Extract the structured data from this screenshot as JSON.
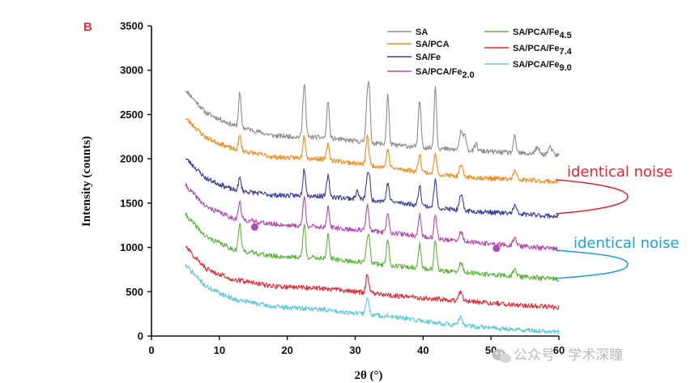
{
  "chart_data": {
    "type": "line",
    "panel_label": "B",
    "xlabel": "2θ (°)",
    "ylabel": "Intensity (counts)",
    "xlim": [
      0,
      60
    ],
    "ylim": [
      0,
      3500
    ],
    "x_ticks": [
      0,
      10,
      20,
      30,
      40,
      50,
      60
    ],
    "y_ticks": [
      0,
      500,
      1000,
      1500,
      2000,
      2500,
      3000,
      3500
    ],
    "grid": false,
    "legend_position": "top-right",
    "x_range_data": [
      5,
      60
    ],
    "series": [
      {
        "name": "SA",
        "name_base": "SA",
        "name_sub": "",
        "color": "#8c8c8c",
        "baseline": [
          [
            5,
            2780
          ],
          [
            8,
            2520
          ],
          [
            12,
            2380
          ],
          [
            18,
            2260
          ],
          [
            25,
            2240
          ],
          [
            35,
            2160
          ],
          [
            45,
            2100
          ],
          [
            60,
            2040
          ]
        ],
        "peaks": [
          [
            13.0,
            380,
            0.18
          ],
          [
            22.5,
            620,
            0.2
          ],
          [
            26.0,
            430,
            0.18
          ],
          [
            31.8,
            560,
            0.2
          ],
          [
            32.1,
            420,
            0.15
          ],
          [
            34.8,
            560,
            0.18
          ],
          [
            39.5,
            520,
            0.2
          ],
          [
            41.8,
            700,
            0.18
          ],
          [
            45.6,
            210,
            0.25
          ],
          [
            46.2,
            160,
            0.2
          ],
          [
            47.8,
            80,
            0.2
          ],
          [
            53.5,
            180,
            0.2
          ],
          [
            56.8,
            70,
            0.3
          ],
          [
            58.7,
            80,
            0.3
          ]
        ]
      },
      {
        "name": "SA/PCA",
        "name_base": "SA/PCA",
        "name_sub": "",
        "color": "#f08c1e",
        "baseline": [
          [
            5,
            2460
          ],
          [
            8,
            2240
          ],
          [
            12,
            2110
          ],
          [
            18,
            2020
          ],
          [
            25,
            2000
          ],
          [
            35,
            1900
          ],
          [
            45,
            1800
          ],
          [
            60,
            1740
          ]
        ],
        "peaks": [
          [
            13.0,
            160,
            0.2
          ],
          [
            22.5,
            260,
            0.2
          ],
          [
            26.0,
            170,
            0.2
          ],
          [
            31.8,
            330,
            0.2
          ],
          [
            34.8,
            200,
            0.2
          ],
          [
            39.5,
            200,
            0.2
          ],
          [
            41.8,
            220,
            0.2
          ],
          [
            45.6,
            120,
            0.25
          ],
          [
            53.5,
            90,
            0.25
          ]
        ]
      },
      {
        "name": "SA/Fe",
        "name_base": "SA/Fe",
        "name_sub": "",
        "color": "#3a3e9c",
        "baseline": [
          [
            5,
            2010
          ],
          [
            8,
            1780
          ],
          [
            12,
            1650
          ],
          [
            18,
            1590
          ],
          [
            25,
            1580
          ],
          [
            35,
            1520
          ],
          [
            45,
            1420
          ],
          [
            60,
            1350
          ]
        ],
        "peaks": [
          [
            13.0,
            140,
            0.2
          ],
          [
            22.5,
            310,
            0.2
          ],
          [
            26.0,
            230,
            0.2
          ],
          [
            30.3,
            90,
            0.2
          ],
          [
            31.8,
            260,
            0.2
          ],
          [
            32.1,
            200,
            0.15
          ],
          [
            34.8,
            200,
            0.2
          ],
          [
            39.5,
            230,
            0.2
          ],
          [
            41.8,
            310,
            0.2
          ],
          [
            45.6,
            170,
            0.25
          ],
          [
            53.5,
            90,
            0.25
          ]
        ]
      },
      {
        "name": "SA/PCA/Fe2.0",
        "name_base": "SA/PCA/Fe",
        "name_sub": "2.0",
        "color": "#b14aaf",
        "baseline": [
          [
            5,
            1700
          ],
          [
            8,
            1460
          ],
          [
            12,
            1330
          ],
          [
            18,
            1260
          ],
          [
            25,
            1230
          ],
          [
            35,
            1170
          ],
          [
            45,
            1070
          ],
          [
            60,
            980
          ]
        ],
        "peaks": [
          [
            13.0,
            190,
            0.2
          ],
          [
            22.5,
            330,
            0.2
          ],
          [
            26.0,
            230,
            0.2
          ],
          [
            31.8,
            290,
            0.2
          ],
          [
            34.8,
            220,
            0.2
          ],
          [
            39.5,
            240,
            0.2
          ],
          [
            41.8,
            270,
            0.2
          ],
          [
            45.6,
            110,
            0.25
          ],
          [
            53.5,
            90,
            0.25
          ]
        ]
      },
      {
        "name": "SA/PCA/Fe4.5",
        "name_base": "SA/PCA/Fe",
        "name_sub": "4.5",
        "color": "#5cb43a",
        "baseline": [
          [
            5,
            1370
          ],
          [
            8,
            1120
          ],
          [
            12,
            980
          ],
          [
            18,
            900
          ],
          [
            25,
            880
          ],
          [
            35,
            800
          ],
          [
            45,
            720
          ],
          [
            60,
            640
          ]
        ],
        "peaks": [
          [
            13.0,
            290,
            0.2
          ],
          [
            22.5,
            370,
            0.2
          ],
          [
            26.0,
            270,
            0.2
          ],
          [
            31.8,
            250,
            0.2
          ],
          [
            32.1,
            200,
            0.15
          ],
          [
            34.8,
            290,
            0.2
          ],
          [
            39.5,
            270,
            0.2
          ],
          [
            41.8,
            340,
            0.2
          ],
          [
            45.6,
            110,
            0.25
          ],
          [
            53.5,
            80,
            0.25
          ]
        ]
      },
      {
        "name": "SA/PCA/Fe7.4",
        "name_base": "SA/PCA/Fe",
        "name_sub": "7.4",
        "color": "#e0262e",
        "baseline": [
          [
            5,
            1010
          ],
          [
            8,
            760
          ],
          [
            12,
            640
          ],
          [
            18,
            560
          ],
          [
            25,
            540
          ],
          [
            35,
            460
          ],
          [
            45,
            400
          ],
          [
            60,
            320
          ]
        ],
        "peaks": [
          [
            31.8,
            210,
            0.22
          ],
          [
            45.5,
            100,
            0.25
          ]
        ]
      },
      {
        "name": "SA/PCA/Fe9.0",
        "name_base": "SA/PCA/Fe",
        "name_sub": "9.0",
        "color": "#5cc8d6",
        "baseline": [
          [
            5,
            800
          ],
          [
            8,
            560
          ],
          [
            12,
            420
          ],
          [
            18,
            330
          ],
          [
            25,
            300
          ],
          [
            35,
            220
          ],
          [
            45,
            120
          ],
          [
            60,
            40
          ]
        ],
        "peaks": [
          [
            31.8,
            190,
            0.22
          ],
          [
            45.5,
            100,
            0.25
          ]
        ]
      }
    ],
    "markers": [
      {
        "x": 15.2,
        "y": 1230,
        "color": "#b14aaf"
      },
      {
        "x": 50.8,
        "y": 990,
        "color": "#b14aaf"
      }
    ],
    "annotations": [
      {
        "text": "identical noise",
        "color": "#e0262e",
        "bracket_series": [
          1,
          2
        ]
      },
      {
        "text": "identical noise",
        "color": "#1f9fd8",
        "bracket_series": [
          3,
          4
        ]
      }
    ]
  },
  "watermark": "公众号 · 学术深瞳"
}
